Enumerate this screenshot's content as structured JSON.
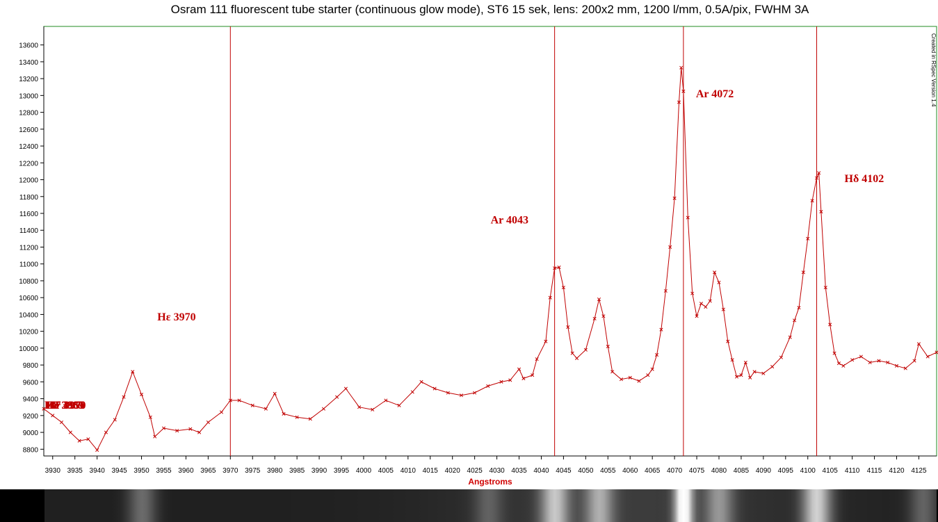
{
  "chart_data": {
    "type": "line",
    "title": "Osram 111 fluorescent tube starter (continuous glow mode), ST6 15 sek,  lens: 200x2 mm, 1200 l/mm, 0.5A/pix, FWHM 3A",
    "xlabel": "Angstroms",
    "ylabel": "",
    "side_note": "Created in RSpec Version 1.4",
    "xlim": [
      3928,
      4129
    ],
    "ylim": [
      8720,
      13820
    ],
    "x_ticks": [
      3930,
      3935,
      3940,
      3945,
      3950,
      3955,
      3960,
      3965,
      3970,
      3975,
      3980,
      3985,
      3990,
      3995,
      4000,
      4005,
      4010,
      4015,
      4020,
      4025,
      4030,
      4035,
      4040,
      4045,
      4050,
      4055,
      4060,
      4065,
      4070,
      4075,
      4080,
      4085,
      4090,
      4095,
      4100,
      4105,
      4110,
      4115,
      4120,
      4125
    ],
    "x_tick_labels": [
      "3930",
      "3935",
      "3940",
      "3945",
      "3950",
      "3955",
      "3960",
      "3965",
      "3970",
      "3975",
      "3980",
      "3985",
      "3990",
      "3995",
      "4000",
      "4005",
      "4010",
      "4015",
      "4020",
      "4025",
      "4030",
      "4035",
      "4040",
      "4045",
      "4050",
      "4055",
      "4060",
      "4065",
      "4070",
      "4075",
      "4080",
      "4085",
      "4090",
      "4095",
      "4100",
      "4105",
      "4110",
      "4115",
      "4120",
      "4125"
    ],
    "y_ticks": [
      8800,
      9000,
      9200,
      9400,
      9600,
      9800,
      10000,
      10200,
      10400,
      10600,
      10800,
      11000,
      11200,
      11400,
      11600,
      11800,
      12000,
      12200,
      12400,
      12600,
      12800,
      13000,
      13200,
      13400,
      13600
    ],
    "grid": false,
    "legend": "none",
    "series_color": "#c00000",
    "series": [
      {
        "x": [
          3928,
          3930,
          3932,
          3934,
          3936,
          3938,
          3940,
          3942,
          3944,
          3946,
          3948,
          3950,
          3952,
          3953,
          3955,
          3958,
          3961,
          3963,
          3965,
          3968,
          3970,
          3972,
          3975,
          3978,
          3980,
          3982,
          3985,
          3988,
          3991,
          3994,
          3996,
          3999,
          4002,
          4005,
          4008,
          4011,
          4013,
          4016,
          4019,
          4022,
          4025,
          4028,
          4031,
          4033,
          4035,
          4036,
          4038,
          4039,
          4041,
          4042,
          4043,
          4044,
          4045,
          4046,
          4047,
          4048,
          4050,
          4052,
          4053,
          4054,
          4055,
          4056,
          4058,
          4060,
          4062,
          4064,
          4065,
          4066,
          4067,
          4068,
          4069,
          4070,
          4071,
          4071.5,
          4072,
          4073,
          4074,
          4075,
          4076,
          4077,
          4078,
          4079,
          4080,
          4081,
          4082,
          4083,
          4084,
          4085,
          4086,
          4087,
          4088,
          4090,
          4092,
          4094,
          4096,
          4097,
          4098,
          4099,
          4100,
          4101,
          4102,
          4102.5,
          4103,
          4104,
          4105,
          4106,
          4107,
          4108,
          4110,
          4112,
          4114,
          4116,
          4118,
          4120,
          4122,
          4124,
          4125,
          4127,
          4129
        ],
        "y": [
          9280,
          9200,
          9120,
          9000,
          8900,
          8920,
          8790,
          9000,
          9150,
          9420,
          9720,
          9450,
          9180,
          8950,
          9050,
          9020,
          9040,
          9000,
          9120,
          9240,
          9380,
          9380,
          9320,
          9280,
          9460,
          9220,
          9180,
          9160,
          9280,
          9420,
          9520,
          9300,
          9270,
          9380,
          9320,
          9480,
          9600,
          9520,
          9470,
          9440,
          9470,
          9550,
          9600,
          9620,
          9750,
          9640,
          9680,
          9870,
          10080,
          10600,
          10950,
          10960,
          10720,
          10250,
          9940,
          9880,
          9980,
          10350,
          10580,
          10380,
          10020,
          9720,
          9630,
          9650,
          9610,
          9680,
          9750,
          9920,
          10220,
          10680,
          11200,
          11780,
          12920,
          13330,
          13050,
          11550,
          10650,
          10380,
          10530,
          10490,
          10560,
          10900,
          10780,
          10460,
          10080,
          9860,
          9660,
          9680,
          9830,
          9650,
          9720,
          9700,
          9780,
          9890,
          10130,
          10330,
          10480,
          10900,
          11300,
          11750,
          12020,
          12080,
          11620,
          10720,
          10280,
          9940,
          9820,
          9790,
          9860,
          9900,
          9830,
          9850,
          9830,
          9790,
          9760,
          9850,
          10050,
          9900,
          9950
        ]
      }
    ],
    "vlines": [
      3970,
      4043,
      4072,
      4102
    ],
    "annotations": [
      {
        "text": "Hε 3970",
        "x": 3970,
        "y": 10330
      },
      {
        "text": "Ar 4043",
        "x": 4043,
        "y": 11480
      },
      {
        "text": "Ar 4072",
        "x": 4072,
        "y": 12980
      },
      {
        "text": "Hδ 4102",
        "x": 4102,
        "y": 11970
      }
    ],
    "overlapping_edge_labels": [
      "H8 3889",
      "He 3965",
      "H7 3970",
      "Ar 4158"
    ],
    "strip_bands": [
      {
        "wavelength": 3950,
        "brightness": 0.32
      },
      {
        "wavelength": 4028,
        "brightness": 0.22
      },
      {
        "wavelength": 4043,
        "brightness": 0.62
      },
      {
        "wavelength": 4053,
        "brightness": 0.5
      },
      {
        "wavelength": 4072,
        "brightness": 1.0
      },
      {
        "wavelength": 4080,
        "brightness": 0.42
      },
      {
        "wavelength": 4102,
        "brightness": 0.72
      },
      {
        "wavelength": 4126,
        "brightness": 0.28
      }
    ]
  }
}
